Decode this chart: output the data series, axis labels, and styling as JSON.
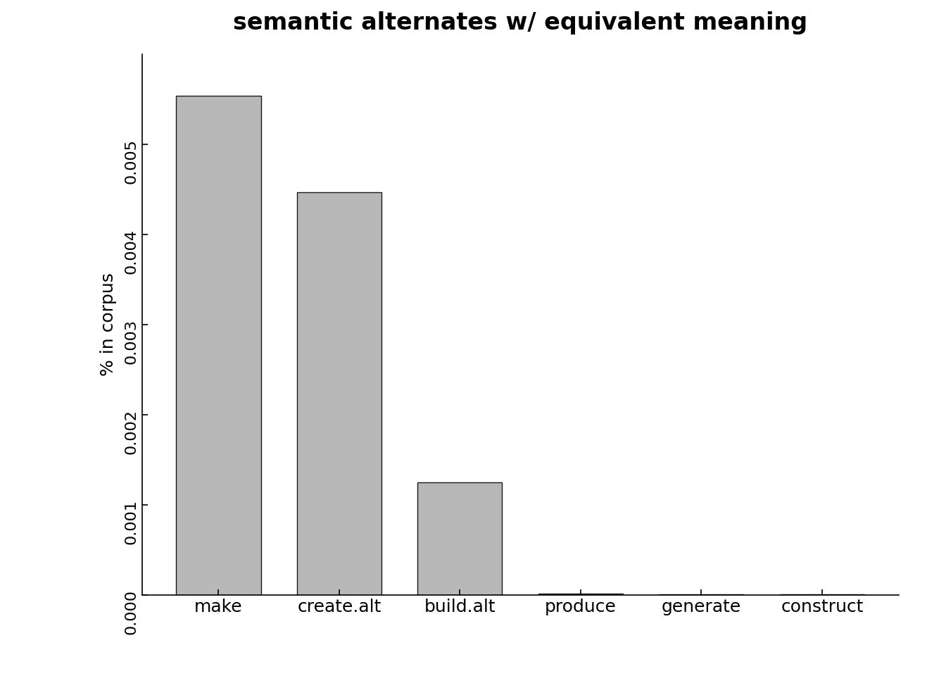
{
  "categories": [
    "make",
    "create.alt",
    "build.alt",
    "produce",
    "generate",
    "construct"
  ],
  "values": [
    0.00554,
    0.00447,
    0.00125,
    1.5e-05,
    1e-05,
    8e-06
  ],
  "bar_color": "#b8b8b8",
  "bar_edgecolor": "#1a1a1a",
  "title": "semantic alternates w/ equivalent meaning",
  "ylabel": "% in corpus",
  "ylim": [
    0,
    0.006
  ],
  "yticks": [
    0.0,
    0.001,
    0.002,
    0.003,
    0.004,
    0.005
  ],
  "title_fontsize": 24,
  "title_fontweight": "bold",
  "ylabel_fontsize": 18,
  "tick_fontsize": 16,
  "xtick_fontsize": 18,
  "background_color": "#ffffff"
}
